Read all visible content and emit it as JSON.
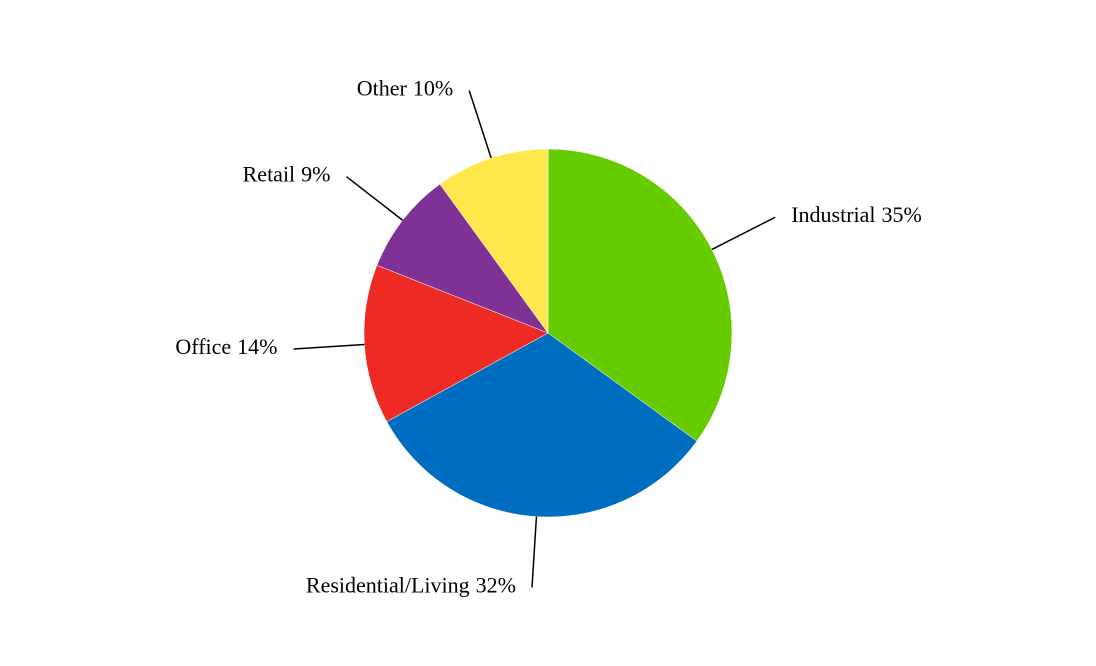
{
  "chart_data": {
    "type": "pie",
    "categories": [
      "Industrial",
      "Residential/Living",
      "Office",
      "Retail",
      "Other"
    ],
    "values": [
      35,
      32,
      14,
      9,
      10
    ],
    "value_labels": [
      "35%",
      "32%",
      "14%",
      "9%",
      "10%"
    ],
    "colors": [
      "#66cc00",
      "#006ec0",
      "#ee2a24",
      "#7f3196",
      "#ffe74c"
    ]
  }
}
